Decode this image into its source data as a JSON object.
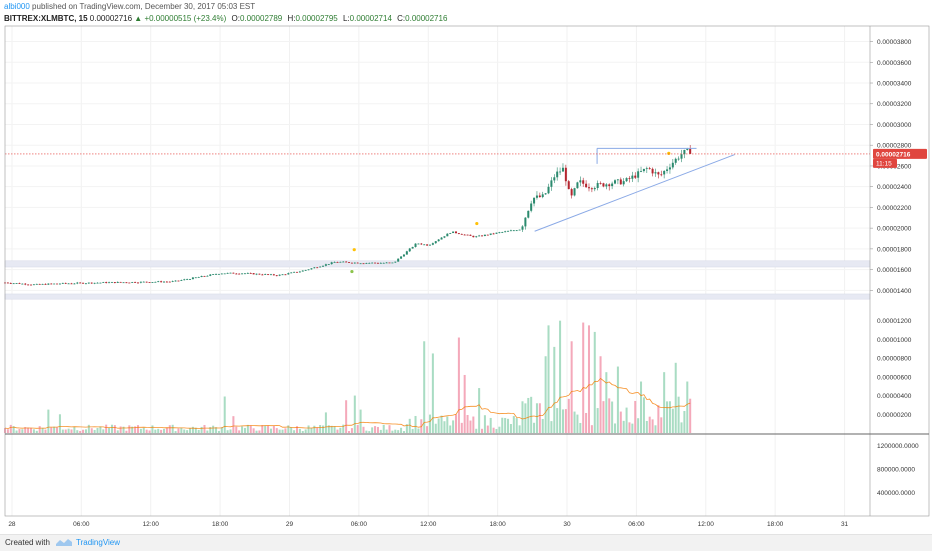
{
  "header": {
    "username": "albi000",
    "published_text": "published on TradingView.com, December 30, 2017 05:03 EST",
    "symbol": "BITTREX:XLMBTC, 15",
    "last_price": "0.00002716",
    "change": "▲ +0.00000515 (+23.4%)",
    "open_label": "O:",
    "open_value": "0.00002789",
    "high_label": "H:",
    "high_value": "0.00002795",
    "low_label": "L:",
    "low_value": "0.00002714",
    "close_label": "C:",
    "close_value": "0.00002716"
  },
  "footer": {
    "created_with": "Created with",
    "brand": "TradingView"
  },
  "chart_data": {
    "type": "candlestick",
    "symbol": "BITTREX:XLMBTC",
    "interval": "15",
    "price_axis": {
      "ticks": [
        "0.00003800",
        "0.00003600",
        "0.00003400",
        "0.00003200",
        "0.00003000",
        "0.00002800",
        "0.00002600",
        "0.00002400",
        "0.00002200",
        "0.00002000",
        "0.00001800",
        "0.00001600",
        "0.00001400"
      ],
      "range": [
        1.22e-05,
        3.95e-05
      ]
    },
    "volume_axis": {
      "ticks": [
        "0.00001200",
        "0.00001000",
        "0.00000800",
        "0.00000600",
        "0.00000400",
        "0.00000200"
      ],
      "range": [
        0,
        1.25e-05
      ]
    },
    "indicator_axis": {
      "ticks": [
        "1200000.0000",
        "800000.0000",
        "400000.0000"
      ],
      "range": [
        0,
        1400000
      ]
    },
    "time_axis": {
      "ticks": [
        {
          "label": "28",
          "t": 0
        },
        {
          "label": "06:00",
          "t": 6
        },
        {
          "label": "12:00",
          "t": 12
        },
        {
          "label": "18:00",
          "t": 18
        },
        {
          "label": "29",
          "t": 24
        },
        {
          "label": "06:00",
          "t": 30
        },
        {
          "label": "12:00",
          "t": 36
        },
        {
          "label": "18:00",
          "t": 42
        },
        {
          "label": "30",
          "t": 48
        },
        {
          "label": "06:00",
          "t": 54
        },
        {
          "label": "12:00",
          "t": 60
        },
        {
          "label": "18:00",
          "t": 66
        },
        {
          "label": "31",
          "t": 72
        }
      ],
      "range": [
        -0.6,
        74.2
      ]
    },
    "price_label": "0.00002716",
    "countdown_label": "11:15",
    "last_price": 2.716e-05,
    "anchors_t": [
      -0.6,
      2,
      4,
      8,
      14,
      18,
      20,
      23,
      25,
      28,
      30,
      33,
      35,
      36,
      38,
      40,
      42,
      44,
      45,
      46,
      47,
      47.7,
      48.3,
      49,
      50,
      52,
      53,
      55,
      56,
      57,
      58,
      58.8
    ],
    "anchors_price": [
      1.475e-05,
      1.455e-05,
      1.465e-05,
      1.475e-05,
      1.485e-05,
      1.565e-05,
      1.565e-05,
      1.545e-05,
      1.585e-05,
      1.675e-05,
      1.665e-05,
      1.665e-05,
      1.855e-05,
      1.835e-05,
      1.965e-05,
      1.915e-05,
      1.955e-05,
      1.99e-05,
      2.29e-05,
      2.305e-05,
      2.52e-05,
      2.575e-05,
      2.275e-05,
      2.45e-05,
      2.4e-05,
      2.44e-05,
      2.45e-05,
      2.58e-05,
      2.5e-05,
      2.62e-05,
      2.725e-05,
      2.755e-05
    ],
    "support_zones": [
      {
        "top": 1.685e-05,
        "bottom": 1.625e-05
      },
      {
        "top": 1.365e-05,
        "bottom": 1.315e-05
      }
    ],
    "trendlines": [
      {
        "t1": 45.2,
        "p1": 1.97e-05,
        "t2": 62.5,
        "p2": 2.71e-05
      },
      {
        "t1": 50.6,
        "p1": 2.77e-05,
        "t2": 59.2,
        "p2": 2.77e-05
      },
      {
        "t1": 50.6,
        "p1": 2.77e-05,
        "t2": 50.6,
        "p2": 2.62e-05
      }
    ],
    "volume_spikes": [
      {
        "t": 3.2,
        "v": 2.5e-06
      },
      {
        "t": 4.2,
        "v": 2e-06
      },
      {
        "t": 18.3,
        "v": 3.9e-06
      },
      {
        "t": 19.2,
        "v": 1.8e-06
      },
      {
        "t": 27.2,
        "v": 2.2e-06
      },
      {
        "t": 29.0,
        "v": 3.5e-06
      },
      {
        "t": 29.7,
        "v": 4e-06
      },
      {
        "t": 30.2,
        "v": 2.5e-06
      },
      {
        "t": 35.7,
        "v": 9.8e-06
      },
      {
        "t": 36.5,
        "v": 8.5e-06
      },
      {
        "t": 38.6,
        "v": 1.02e-05
      },
      {
        "t": 39.2,
        "v": 6.2e-06
      },
      {
        "t": 40.3,
        "v": 4.8e-06
      },
      {
        "t": 46.1,
        "v": 8.2e-06
      },
      {
        "t": 46.5,
        "v": 1.15e-05
      },
      {
        "t": 46.9,
        "v": 9.2e-06
      },
      {
        "t": 47.5,
        "v": 1.2e-05
      },
      {
        "t": 48.3,
        "v": 9.8e-06
      },
      {
        "t": 49.4,
        "v": 1.18e-05
      },
      {
        "t": 49.9,
        "v": 1.15e-05
      },
      {
        "t": 50.4,
        "v": 1.08e-05
      },
      {
        "t": 50.9,
        "v": 8.2e-06
      },
      {
        "t": 51.5,
        "v": 6.5e-06
      },
      {
        "t": 52.5,
        "v": 7.1e-06
      },
      {
        "t": 54.4,
        "v": 5.5e-06
      },
      {
        "t": 56.5,
        "v": 6.5e-06
      },
      {
        "t": 57.5,
        "v": 7.5e-06
      },
      {
        "t": 58.4,
        "v": 5.5e-06
      },
      {
        "t": 58.9,
        "v": 7e-06
      }
    ],
    "grid": true,
    "colors": {
      "up": "#26a69a",
      "down": "#ef5350",
      "volume_up": "#a9dcc3",
      "volume_down": "#f4a9ba",
      "volume_ma": "#f57c00",
      "trendline": "#8aa9e6",
      "price_line": "#e53935",
      "zone": "#e7e9f3",
      "marker_up": "#8bc34a",
      "marker_down": "#ffc107"
    }
  }
}
